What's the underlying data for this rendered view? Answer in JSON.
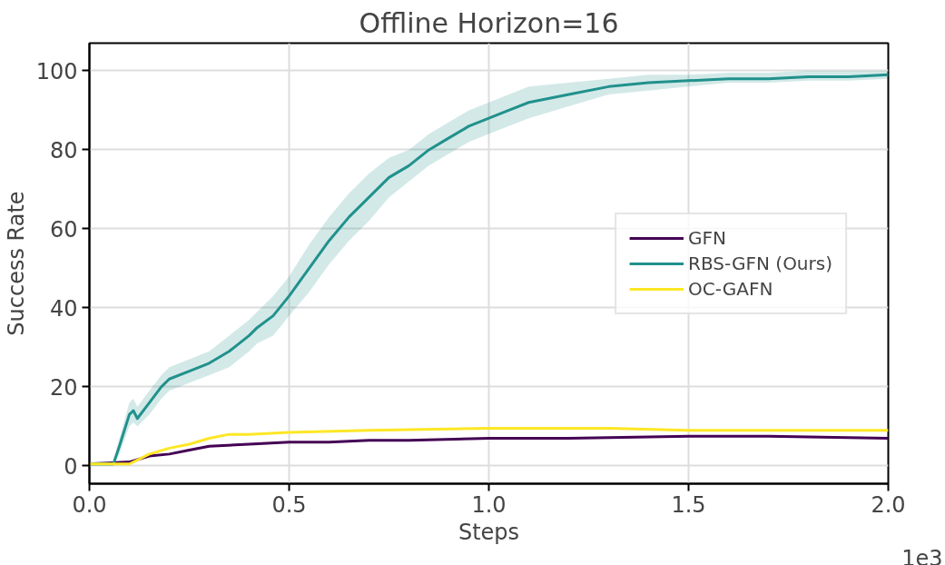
{
  "chart_data": {
    "type": "line",
    "title": "Offline Horizon=16",
    "xlabel": "Steps",
    "ylabel": "Success Rate",
    "annotations": [
      "1e3"
    ],
    "xlim": [
      0,
      2
    ],
    "xticks": [
      {
        "value": 0,
        "label": "0.0"
      },
      0.5,
      {
        "value": 1,
        "label": "1.0"
      },
      1.5,
      {
        "value": 2,
        "label": "2.0"
      }
    ],
    "ylim": [
      -4.5,
      107
    ],
    "yticks": [
      0,
      20,
      40,
      60,
      80,
      100
    ],
    "grid": true,
    "legend": "right",
    "line_style": "solid",
    "marker": "none",
    "series": [
      {
        "name": "GFN",
        "color": "#440154",
        "x": [
          0,
          0.1,
          0.15,
          0.2,
          0.25,
          0.3,
          0.4,
          0.5,
          0.6,
          0.7,
          0.8,
          1.0,
          1.2,
          1.5,
          1.7,
          2.0
        ],
        "values": [
          0.5,
          1,
          2.5,
          3,
          4,
          5,
          5.5,
          6,
          6,
          6.5,
          6.5,
          7,
          7,
          7.5,
          7.5,
          7
        ]
      },
      {
        "name": "RBS-GFN (Ours)",
        "color": "#21918c",
        "x": [
          0,
          0.06,
          0.075,
          0.1,
          0.11,
          0.12,
          0.15,
          0.18,
          0.2,
          0.25,
          0.3,
          0.35,
          0.4,
          0.42,
          0.46,
          0.5,
          0.55,
          0.6,
          0.65,
          0.7,
          0.75,
          0.8,
          0.85,
          0.9,
          0.95,
          1.0,
          1.05,
          1.1,
          1.2,
          1.3,
          1.4,
          1.5,
          1.6,
          1.7,
          1.8,
          1.9,
          2.0
        ],
        "values": [
          0.5,
          0.5,
          5,
          13,
          14,
          12,
          16,
          20,
          22,
          24,
          26,
          29,
          33,
          35,
          38,
          43,
          50,
          57,
          63,
          68,
          73,
          76,
          80,
          83,
          86,
          88,
          90,
          92,
          94,
          96,
          97,
          97.5,
          98,
          98,
          98.5,
          98.5,
          99
        ],
        "lower": [
          0,
          0,
          3,
          10,
          11,
          10,
          13,
          17,
          19,
          21,
          23,
          25,
          29,
          31,
          33,
          38,
          44,
          51,
          57,
          62,
          68,
          72,
          76,
          79,
          82,
          84,
          86,
          88,
          91,
          94,
          95,
          96,
          97,
          97,
          97.5,
          97.5,
          98
        ],
        "upper": [
          1,
          1,
          7,
          16,
          17,
          15,
          19,
          23,
          25,
          27,
          29,
          33,
          37,
          39,
          43,
          48,
          56,
          63,
          69,
          74,
          78,
          80,
          84,
          87,
          90,
          92,
          94,
          96,
          97,
          98,
          99,
          99,
          99.5,
          99.5,
          100,
          100,
          100
        ]
      },
      {
        "name": "OC-GAFN",
        "color": "#fde725",
        "x": [
          0,
          0.1,
          0.15,
          0.2,
          0.25,
          0.3,
          0.35,
          0.4,
          0.5,
          0.7,
          1.0,
          1.3,
          1.5,
          1.8,
          2.0
        ],
        "values": [
          0.5,
          0.5,
          3,
          4.5,
          5.5,
          7,
          8,
          8,
          8.5,
          9,
          9.5,
          9.5,
          9,
          9,
          9
        ]
      }
    ]
  }
}
